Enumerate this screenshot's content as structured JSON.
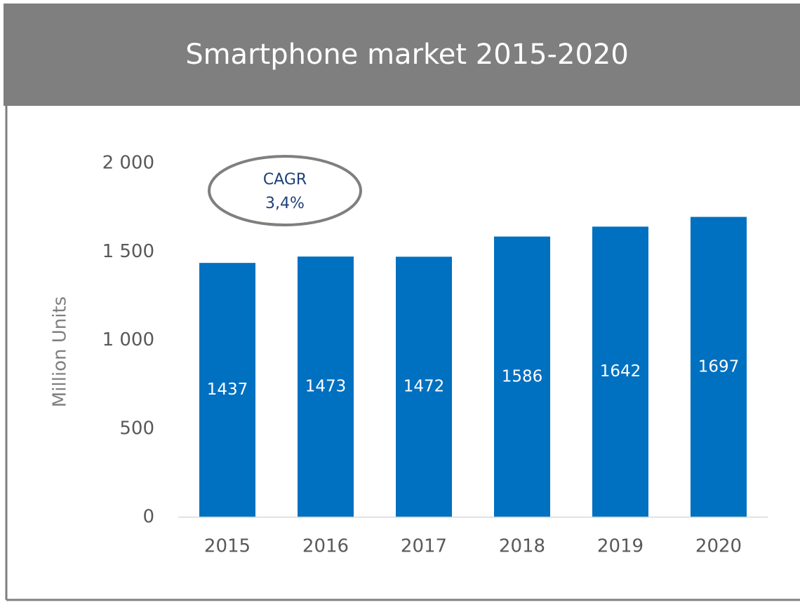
{
  "chart_data": {
    "type": "bar",
    "title": "Smartphone market 2015-2020",
    "y_label": "Million Units",
    "categories": [
      "2015",
      "2016",
      "2017",
      "2018",
      "2019",
      "2020"
    ],
    "values": [
      1437,
      1473,
      1472,
      1586,
      1642,
      1697
    ],
    "color": "#0070c0",
    "ylim": [
      0,
      2000
    ],
    "yticks": [
      0,
      {
        "value": 500,
        "label": "500"
      },
      {
        "value": 1000,
        "label": "1 000"
      },
      {
        "value": 1500,
        "label": "1 500"
      },
      {
        "value": 2000,
        "label": "2 000"
      }
    ],
    "grid": false,
    "annotation": [
      "CAGR",
      "3,4%"
    ]
  }
}
